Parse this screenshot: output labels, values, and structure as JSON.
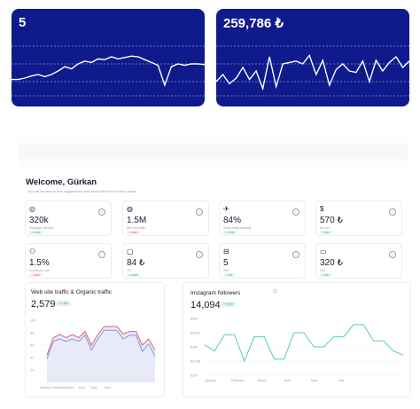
{
  "top_cards": [
    {
      "value": "5",
      "line": [
        0.62,
        0.62,
        0.6,
        0.57,
        0.55,
        0.58,
        0.55,
        0.5,
        0.44,
        0.47,
        0.4,
        0.36,
        0.38,
        0.33,
        0.34,
        0.3,
        0.33,
        0.31,
        0.29,
        0.3,
        0.34,
        0.38,
        0.42,
        0.7,
        0.44,
        0.4,
        0.42,
        0.4,
        0.4,
        0.41
      ]
    },
    {
      "value": "259,786 ₺",
      "line": [
        0.65,
        0.55,
        0.68,
        0.6,
        0.45,
        0.62,
        0.5,
        0.75,
        0.3,
        0.72,
        0.4,
        0.38,
        0.36,
        0.4,
        0.28,
        0.55,
        0.35,
        0.7,
        0.48,
        0.4,
        0.5,
        0.52,
        0.36,
        0.65,
        0.35,
        0.5,
        0.38,
        0.3,
        0.45,
        0.36
      ]
    }
  ],
  "welcome": {
    "title": "Welcome, Gürkan",
    "subtitle": "You will be able to find suggestions and data within the Growen panel"
  },
  "stats": [
    {
      "icon": "instagram-icon",
      "glyph": "◎",
      "value": "320k",
      "label": "Instagram followers",
      "delta": "+ 3.1%",
      "dir": "up"
    },
    {
      "icon": "globe-icon",
      "glyph": "◍",
      "value": "1.5M",
      "label": "Web site traffic",
      "delta": "- 6.4%",
      "dir": "down"
    },
    {
      "icon": "rocket-icon",
      "glyph": "✈",
      "value": "84%",
      "label": "Social media planning",
      "delta": "+ 2.5%",
      "dir": "up"
    },
    {
      "icon": "dollar-icon",
      "glyph": "$",
      "value": "570 ₺",
      "label": "Ad cost",
      "delta": "+ 9%",
      "dir": "up"
    },
    {
      "icon": "people-icon",
      "glyph": "⚇",
      "value": "1.5%",
      "label": "Conversion rate",
      "delta": "- 4.4%",
      "dir": "down"
    },
    {
      "icon": "chat-icon",
      "glyph": "▢",
      "value": "84 ₺",
      "label": "LTV",
      "delta": "+ 6.8%",
      "dir": "up"
    },
    {
      "icon": "minus-square-icon",
      "glyph": "⊟",
      "value": "5",
      "label": "SEA",
      "delta": "+ 3%",
      "dir": "up"
    },
    {
      "icon": "card-icon",
      "glyph": "▭",
      "value": "320 ₺",
      "label": "CAC",
      "delta": "+ 9%",
      "dir": "up"
    }
  ],
  "traffic_panel": {
    "title": "Web site traffic & Organic traffic",
    "value": "2,579",
    "delta": "+ 1.5%",
    "y_ticks": [
      "100",
      "80",
      "60",
      "40",
      "20"
    ],
    "x_ticks": [
      "January",
      "February",
      "March",
      "April",
      "May",
      "June"
    ],
    "series_a": [
      44,
      72,
      77,
      72,
      77,
      72,
      82,
      60,
      77,
      90,
      90,
      90,
      78,
      82,
      82,
      60,
      70,
      52
    ],
    "series_b": [
      38,
      66,
      70,
      66,
      70,
      66,
      76,
      52,
      70,
      84,
      84,
      84,
      70,
      76,
      76,
      50,
      62,
      42
    ]
  },
  "instagram_panel": {
    "title": "Instagram followers",
    "value": "14,094",
    "delta": "+ 3.1%",
    "y_ticks": [
      "$24K",
      "$18.5K",
      "$15K",
      "$12.5K",
      "$10K"
    ],
    "x_ticks": [
      "January",
      "February",
      "March",
      "April",
      "May",
      "June"
    ],
    "series": [
      17.5,
      16.0,
      20.0,
      20.0,
      13.5,
      19.5,
      19.5,
      14.0,
      14.0,
      20.5,
      20.5,
      17.0,
      17.0,
      19.5,
      19.5,
      22.5,
      22.5,
      18.5,
      18.5,
      16.0,
      15.0
    ]
  },
  "colors": {
    "card_bg": "#0f1a8c",
    "line_red": "#e06070",
    "line_blue": "#8b93d8",
    "line_green": "#4fd1b1"
  }
}
